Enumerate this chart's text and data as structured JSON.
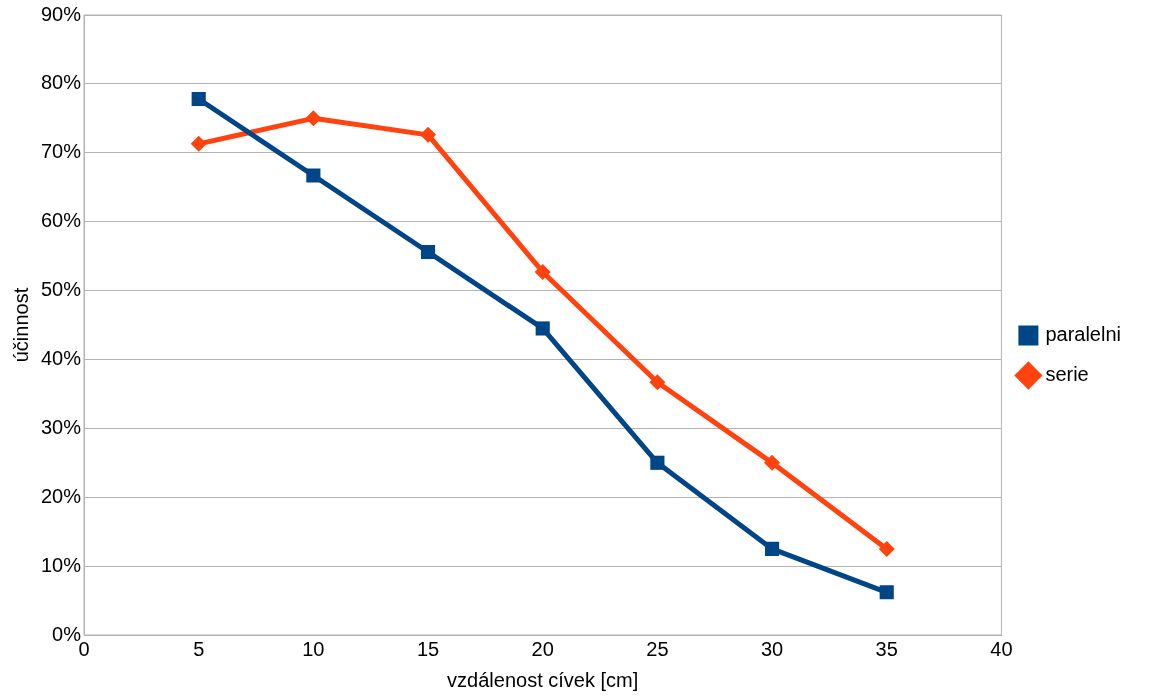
{
  "chart_data": {
    "type": "line",
    "xlabel": "vzdálenost cívek [cm]",
    "ylabel": "účinnost",
    "x": [
      5,
      10,
      15,
      20,
      25,
      30,
      35
    ],
    "series": [
      {
        "name": "paralelni",
        "color": "#004586",
        "marker": "square",
        "values": [
          77.8,
          66.7,
          55.6,
          44.5,
          25,
          12.5,
          6.2
        ]
      },
      {
        "name": "serie",
        "color": "#ff420e",
        "marker": "diamond",
        "values": [
          71.3,
          75,
          72.6,
          52.7,
          36.7,
          25,
          12.5
        ]
      }
    ],
    "xlim": [
      0,
      40
    ],
    "xticks": [
      0,
      5,
      10,
      15,
      20,
      25,
      30,
      35,
      40
    ],
    "ylim": [
      0,
      90
    ],
    "yticks": [
      {
        "value": 0,
        "label": "0%"
      },
      {
        "value": 10,
        "label": "10%"
      },
      {
        "value": 20,
        "label": "20%"
      },
      {
        "value": 30,
        "label": "30%"
      },
      {
        "value": 40,
        "label": "40%"
      },
      {
        "value": 50,
        "label": "50%"
      },
      {
        "value": 60,
        "label": "60%"
      },
      {
        "value": 70,
        "label": "70%"
      },
      {
        "value": 80,
        "label": "80%"
      },
      {
        "value": 90,
        "label": "90%"
      }
    ],
    "grid": "y",
    "legend": "right",
    "line_style": "solid"
  }
}
